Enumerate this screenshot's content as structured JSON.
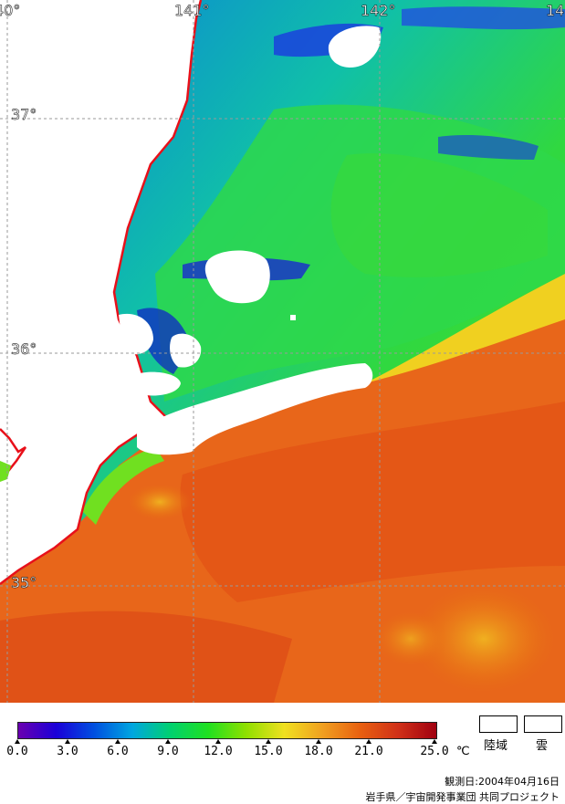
{
  "map": {
    "longitude_labels": [
      {
        "id": "lon-140",
        "text": "40°"
      },
      {
        "id": "lon-141",
        "text": "141°"
      },
      {
        "id": "lon-142",
        "text": "142°"
      },
      {
        "id": "lon-143",
        "text": "14"
      }
    ],
    "latitude_labels": [
      {
        "id": "lat-37",
        "text": "37°"
      },
      {
        "id": "lat-36",
        "text": "36°"
      },
      {
        "id": "lat-35",
        "text": "35°"
      }
    ],
    "land_color": "#ffffff",
    "cloud_color": "#ffffff",
    "coastline_color": "#e8101a",
    "grid_color": "#9a9a9a"
  },
  "colorbar": {
    "ticks": [
      "0.0",
      "3.0",
      "6.0",
      "9.0",
      "12.0",
      "15.0",
      "18.0",
      "21.0",
      "25.0"
    ],
    "unit": "℃",
    "colors": [
      "#6a00b0",
      "#1a00d8",
      "#0050e0",
      "#00a6e0",
      "#00d070",
      "#20e020",
      "#90e000",
      "#f0e020",
      "#f0a020",
      "#e86010",
      "#d03018",
      "#a00010"
    ]
  },
  "legend": {
    "land_label": "陸域",
    "cloud_label": "雲"
  },
  "footer": {
    "observation_date": "観測日:2004年04月16日",
    "credit": "岩手県／宇宙開発事業団 共同プロジェクト"
  }
}
